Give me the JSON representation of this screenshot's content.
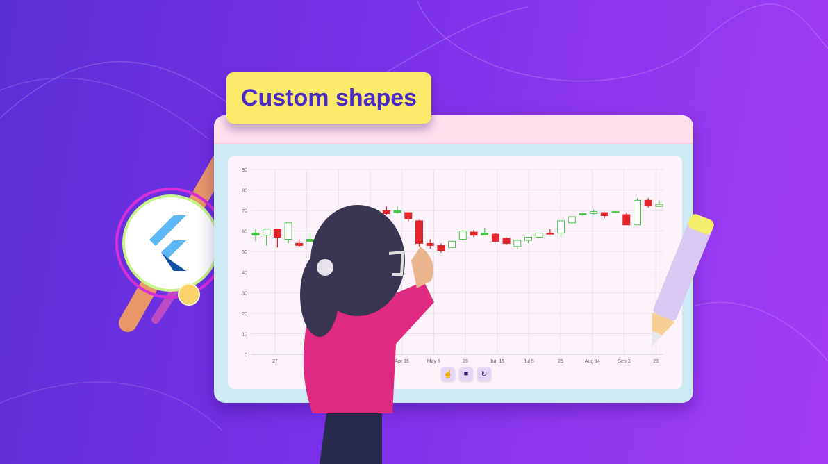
{
  "banner": {
    "title": "Custom shapes"
  },
  "colors": {
    "bullish": "#4cc34a",
    "bearish": "#e3242b",
    "badge": "#f9ea6a",
    "title_text": "#4c2bc4"
  },
  "chart_data": {
    "type": "candlestick",
    "y_ticks": [
      "0",
      "10",
      "20",
      "30",
      "40",
      "50",
      "60",
      "70",
      "80",
      "90"
    ],
    "ylim": [
      0,
      90
    ],
    "x_ticks": [
      "27",
      "",
      "",
      "",
      "Apr 16",
      "May 6",
      "26",
      "Jun 15",
      "Jul 5",
      "25",
      "Aug 14",
      "Sep 3",
      "23"
    ],
    "grid": true,
    "candles": [
      {
        "i": 0,
        "o": 58,
        "h": 61,
        "l": 55,
        "c": 59,
        "style": "filled"
      },
      {
        "i": 1,
        "o": 58,
        "h": 61,
        "l": 53,
        "c": 61,
        "style": "hollow"
      },
      {
        "i": 2,
        "o": 61,
        "h": 61,
        "l": 52,
        "c": 57,
        "style": "filled"
      },
      {
        "i": 3,
        "o": 56,
        "h": 64,
        "l": 54,
        "c": 64,
        "style": "hollow"
      },
      {
        "i": 4,
        "o": 54,
        "h": 56,
        "l": 52.5,
        "c": 53,
        "style": "filled"
      },
      {
        "i": 5,
        "o": 55,
        "h": 59,
        "l": 54.5,
        "c": 56,
        "style": "filled"
      },
      {
        "i": 11,
        "o": 69,
        "h": 71,
        "l": 68,
        "c": 70,
        "style": "hollow"
      },
      {
        "i": 12,
        "o": 70,
        "h": 72,
        "l": 68,
        "c": 68.5,
        "style": "filled"
      },
      {
        "i": 13,
        "o": 69,
        "h": 72,
        "l": 68.5,
        "c": 70,
        "style": "filled"
      },
      {
        "i": 14,
        "o": 69,
        "h": 69,
        "l": 64.5,
        "c": 66,
        "style": "filled"
      },
      {
        "i": 15,
        "o": 65,
        "h": 65.5,
        "l": 52.5,
        "c": 54,
        "style": "filled"
      },
      {
        "i": 16,
        "o": 54,
        "h": 56,
        "l": 51.5,
        "c": 53,
        "style": "filled"
      },
      {
        "i": 17,
        "o": 53,
        "h": 54,
        "l": 49.5,
        "c": 50.5,
        "style": "filled"
      },
      {
        "i": 18,
        "o": 52,
        "h": 55.5,
        "l": 51.5,
        "c": 55,
        "style": "hollow"
      },
      {
        "i": 19,
        "o": 56,
        "h": 60.5,
        "l": 55.5,
        "c": 60,
        "style": "hollow"
      },
      {
        "i": 20,
        "o": 59.5,
        "h": 60.5,
        "l": 57,
        "c": 58,
        "style": "filled"
      },
      {
        "i": 21,
        "o": 58,
        "h": 61.5,
        "l": 58,
        "c": 59,
        "style": "filled"
      },
      {
        "i": 22,
        "o": 58.5,
        "h": 59,
        "l": 55,
        "c": 55,
        "style": "filled"
      },
      {
        "i": 23,
        "o": 56.5,
        "h": 57,
        "l": 53.5,
        "c": 54,
        "style": "filled"
      },
      {
        "i": 24,
        "o": 52.5,
        "h": 56,
        "l": 51,
        "c": 55.5,
        "style": "hollow"
      },
      {
        "i": 25,
        "o": 55.5,
        "h": 57,
        "l": 54,
        "c": 57,
        "style": "hollow"
      },
      {
        "i": 26,
        "o": 57,
        "h": 59,
        "l": 57,
        "c": 59,
        "style": "hollow"
      },
      {
        "i": 27,
        "o": 59,
        "h": 61,
        "l": 58.5,
        "c": 58.5,
        "style": "filled"
      },
      {
        "i": 28,
        "o": 59,
        "h": 65.5,
        "l": 57,
        "c": 65,
        "style": "hollow"
      },
      {
        "i": 29,
        "o": 64,
        "h": 67,
        "l": 63.5,
        "c": 67,
        "style": "hollow"
      },
      {
        "i": 30,
        "o": 68,
        "h": 69,
        "l": 67.5,
        "c": 68.5,
        "style": "filled"
      },
      {
        "i": 31,
        "o": 68.5,
        "h": 70.5,
        "l": 68,
        "c": 69.5,
        "style": "hollow"
      },
      {
        "i": 32,
        "o": 69,
        "h": 69,
        "l": 66.5,
        "c": 67.5,
        "style": "filled"
      },
      {
        "i": 33,
        "o": 69.5,
        "h": 69.5,
        "l": 69.5,
        "c": 69.5,
        "style": "filled"
      },
      {
        "i": 34,
        "o": 68,
        "h": 69,
        "l": 63,
        "c": 63,
        "style": "filled"
      },
      {
        "i": 35,
        "o": 63,
        "h": 76,
        "l": 63,
        "c": 75,
        "style": "hollow"
      },
      {
        "i": 36,
        "o": 75,
        "h": 76,
        "l": 71.5,
        "c": 72.5,
        "style": "filled"
      },
      {
        "i": 37,
        "o": 72,
        "h": 75,
        "l": 72,
        "c": 73,
        "style": "hollow"
      }
    ]
  },
  "toolbar": [
    {
      "icon": "pan-hand-icon",
      "glyph": "☝"
    },
    {
      "icon": "selection-rectangle-icon",
      "glyph": "■"
    },
    {
      "icon": "reset-icon",
      "glyph": "↻"
    }
  ]
}
